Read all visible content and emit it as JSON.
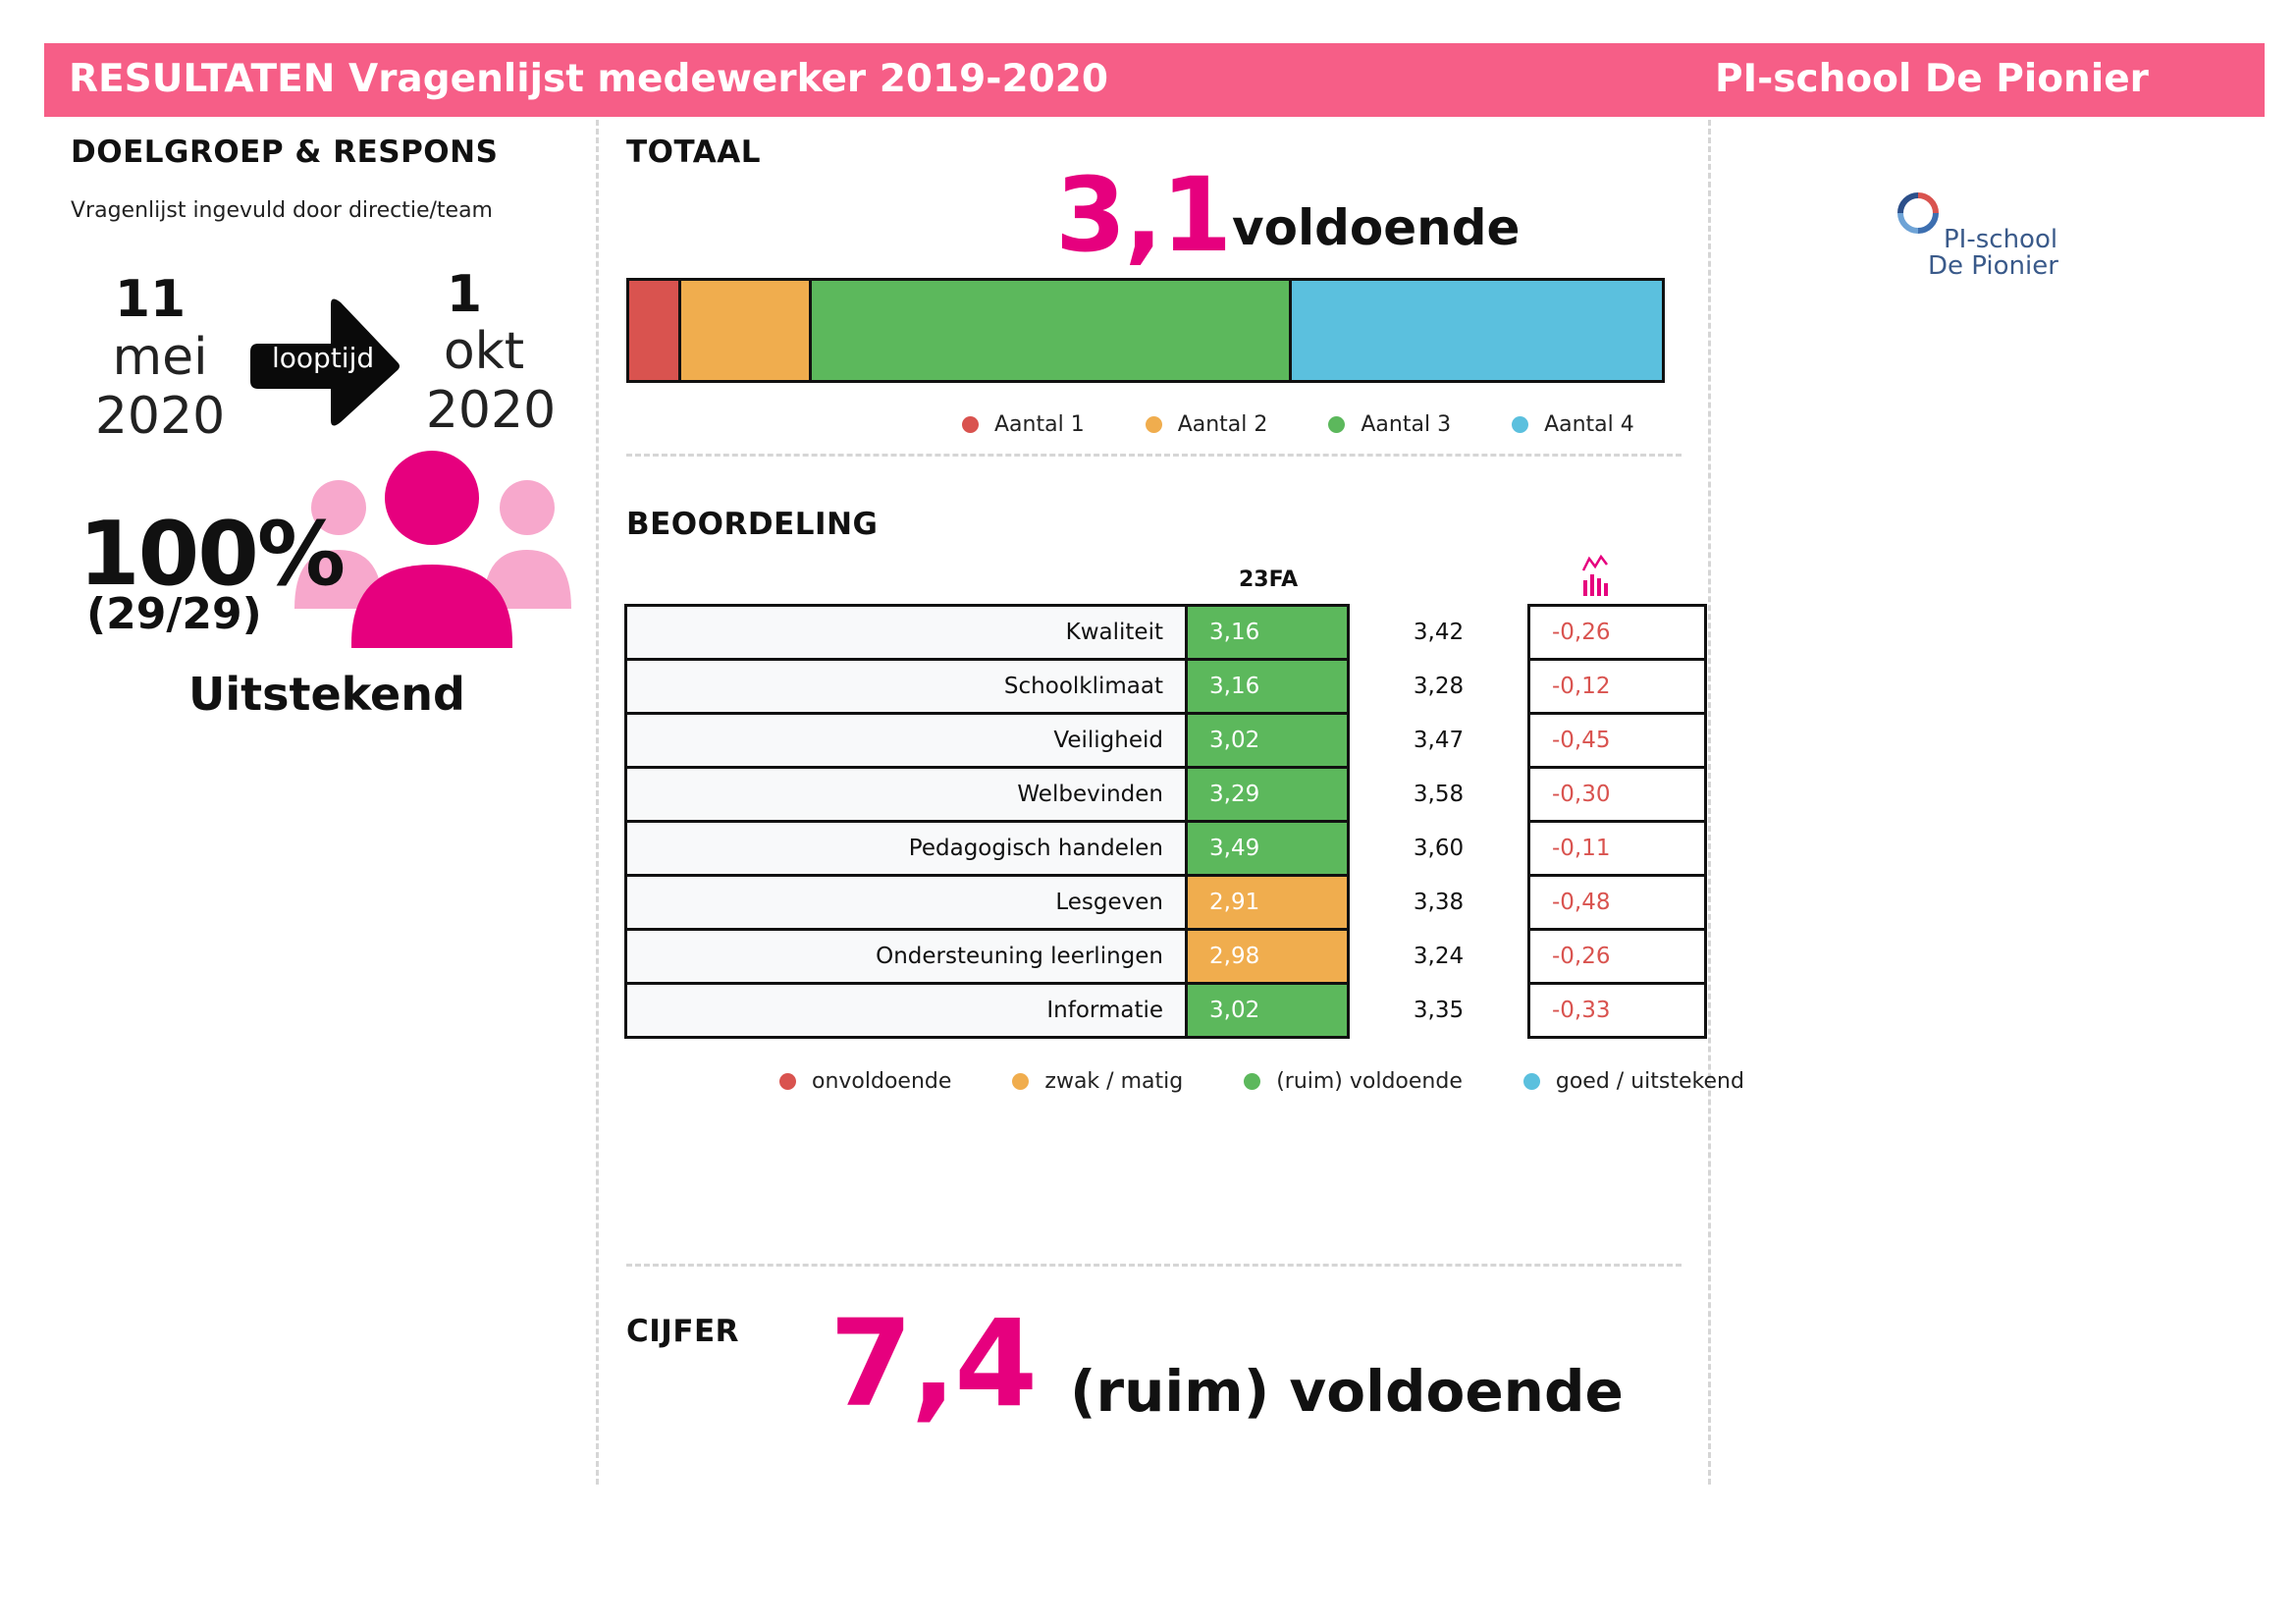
{
  "header": {
    "title": "RESULTATEN Vragenlijst medewerker 2019-2020",
    "school": "PI-school De Pionier"
  },
  "left": {
    "section_title": "DOELGROEP & RESPONS",
    "subtitle": "Vragenlijst ingevuld door directie/team",
    "start": {
      "day": "11",
      "month": "mei",
      "year": "2020"
    },
    "arrow_label": "looptijd",
    "end": {
      "day": "1",
      "month": "okt",
      "year": "2020"
    },
    "response_pct": "100%",
    "response_count": "(29/29)",
    "response_verdict": "Uitstekend"
  },
  "totaal": {
    "section_title": "TOTAAL",
    "score": "3,1",
    "score_label": "voldoende",
    "bar": [
      {
        "name": "Aantal 1",
        "color": "#d9534f",
        "share": 0.05
      },
      {
        "name": "Aantal 2",
        "color": "#f0ad4e",
        "share": 0.127
      },
      {
        "name": "Aantal 3",
        "color": "#5cb85c",
        "share": 0.465
      },
      {
        "name": "Aantal 4",
        "color": "#5bc0de",
        "share": 0.358
      }
    ]
  },
  "beoordeling": {
    "section_title": "BEOORDELING",
    "col_group": "23FA",
    "rows": [
      {
        "label": "Kwaliteit",
        "value": "3,16",
        "color": "#5cb85c",
        "benchmark": "3,42",
        "diff": "-0,26"
      },
      {
        "label": "Schoolklimaat",
        "value": "3,16",
        "color": "#5cb85c",
        "benchmark": "3,28",
        "diff": "-0,12"
      },
      {
        "label": "Veiligheid",
        "value": "3,02",
        "color": "#5cb85c",
        "benchmark": "3,47",
        "diff": "-0,45"
      },
      {
        "label": "Welbevinden",
        "value": "3,29",
        "color": "#5cb85c",
        "benchmark": "3,58",
        "diff": "-0,30"
      },
      {
        "label": "Pedagogisch handelen",
        "value": "3,49",
        "color": "#5cb85c",
        "benchmark": "3,60",
        "diff": "-0,11"
      },
      {
        "label": "Lesgeven",
        "value": "2,91",
        "color": "#f0ad4e",
        "benchmark": "3,38",
        "diff": "-0,48"
      },
      {
        "label": "Ondersteuning leerlingen",
        "value": "2,98",
        "color": "#f0ad4e",
        "benchmark": "3,24",
        "diff": "-0,26"
      },
      {
        "label": "Informatie",
        "value": "3,02",
        "color": "#5cb85c",
        "benchmark": "3,35",
        "diff": "-0,33"
      }
    ],
    "legend": [
      {
        "label": "onvoldoende",
        "color": "#d9534f"
      },
      {
        "label": "zwak / matig",
        "color": "#f0ad4e"
      },
      {
        "label": "(ruim) voldoende",
        "color": "#5cb85c"
      },
      {
        "label": "goed / uitstekend",
        "color": "#5bc0de"
      }
    ]
  },
  "cijfer": {
    "section_title": "CIJFER",
    "score": "7,4",
    "score_label": "(ruim) voldoende"
  },
  "logo": {
    "line1": "PI-school",
    "line2": "De Pionier"
  },
  "colors": {
    "header_pink": "#f65e87",
    "accent_magenta": "#e6007e",
    "light_pink": "#f7a8cc"
  }
}
